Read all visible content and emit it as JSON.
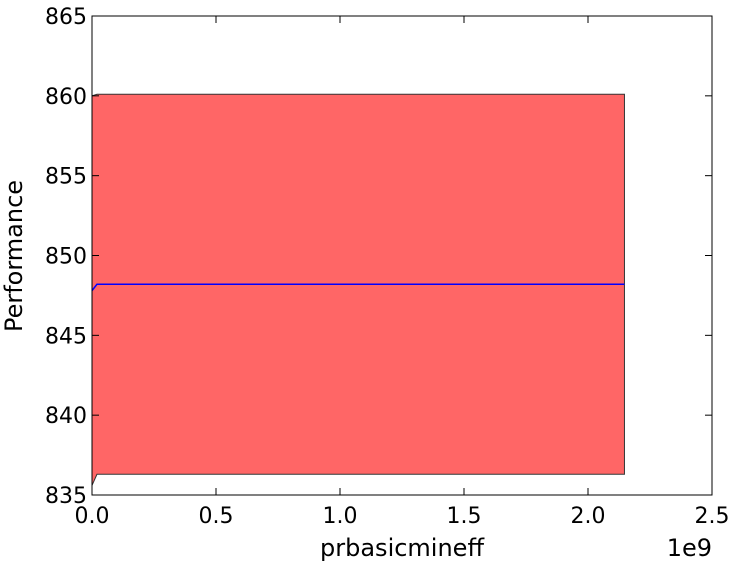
{
  "chart_data": {
    "type": "area",
    "title": "",
    "xlabel": "prbasicmineff",
    "ylabel": "Performance",
    "x_offset_label": "1e9",
    "xlim": [
      0.0,
      2.5
    ],
    "ylim": [
      835,
      865
    ],
    "x_ticks": [
      "0.0",
      "0.5",
      "1.0",
      "1.5",
      "2.0",
      "2.5"
    ],
    "y_ticks": [
      "835",
      "840",
      "845",
      "850",
      "855",
      "860",
      "865"
    ],
    "grid": false,
    "series": [
      {
        "kind": "band",
        "x": [
          0.0,
          0.02,
          2.147
        ],
        "lower": [
          835.6,
          836.3,
          836.3
        ],
        "upper": [
          860.0,
          860.1,
          860.1
        ],
        "color": "#ff6666"
      },
      {
        "kind": "line",
        "x": [
          0.0,
          0.02,
          2.147
        ],
        "y": [
          847.8,
          848.2,
          848.2
        ],
        "color": "#0000ff"
      }
    ]
  }
}
